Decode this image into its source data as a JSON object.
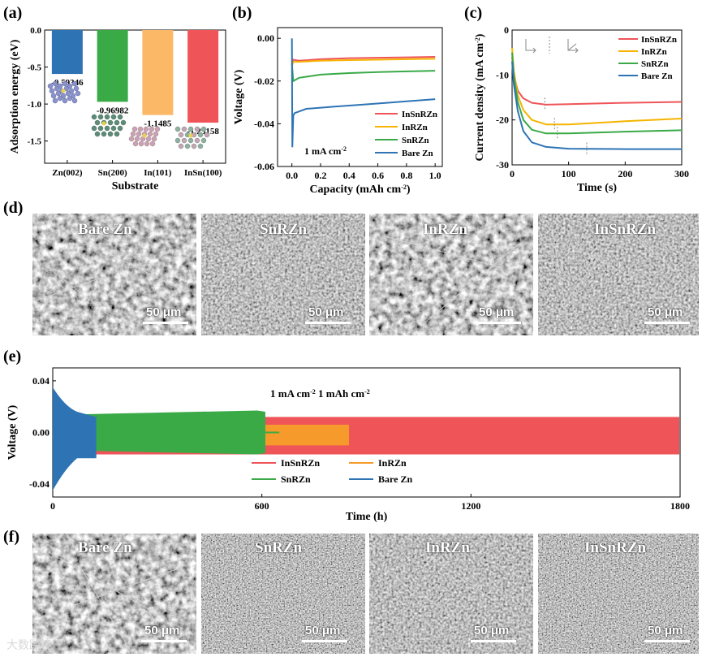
{
  "panels": {
    "a": {
      "letter": "(a)"
    },
    "b": {
      "letter": "(b)"
    },
    "c": {
      "letter": "(c)"
    },
    "d": {
      "letter": "(d)"
    },
    "e": {
      "letter": "(e)"
    },
    "f": {
      "letter": "(f)"
    }
  },
  "chart_data": [
    {
      "id": "a",
      "type": "bar",
      "xlabel": "Substrate",
      "ylabel": "Adsorption energy (eV)",
      "categories": [
        "Zn(002)",
        "Sn(200)",
        "In(101)",
        "InSn(100)"
      ],
      "values": [
        -0.59346,
        -0.96982,
        -1.1485,
        -1.25158
      ],
      "value_labels": [
        "-0.59346",
        "-0.96982",
        "-1.1485",
        "-1.25158"
      ],
      "colors": [
        "#2e74b5",
        "#3aaa47",
        "#fbb867",
        "#ef5459"
      ],
      "ylim": [
        -1.8,
        0.0
      ],
      "yticks": [
        "0.0",
        "-0.5",
        "-1.0",
        "-1.5"
      ]
    },
    {
      "id": "b",
      "type": "line",
      "xlabel": "Capacity (mAh cm⁻²)",
      "ylabel": "Voltage (V)",
      "annotation": "1 mA cm⁻²",
      "xlim": [
        -0.1,
        1.05
      ],
      "ylim": [
        -0.06,
        0.005
      ],
      "xticks": [
        "0.0",
        "0.2",
        "0.4",
        "0.6",
        "0.8",
        "1.0"
      ],
      "yticks": [
        "0.00",
        "-0.02",
        "-0.04",
        "-0.06"
      ],
      "series": [
        {
          "name": "InSnRZn",
          "color": "#ef5459",
          "x": [
            0.0,
            0.01,
            0.05,
            0.2,
            0.4,
            0.6,
            0.8,
            1.0
          ],
          "y": [
            -0.012,
            -0.01,
            -0.0105,
            -0.0098,
            -0.0093,
            -0.0091,
            -0.0089,
            -0.0087
          ]
        },
        {
          "name": "InRZn",
          "color": "#f6b400",
          "x": [
            0.0,
            0.01,
            0.05,
            0.2,
            0.4,
            0.6,
            0.8,
            1.0
          ],
          "y": [
            -0.013,
            -0.011,
            -0.011,
            -0.0105,
            -0.0102,
            -0.01,
            -0.0098,
            -0.0096
          ]
        },
        {
          "name": "SnRZn",
          "color": "#3aaa47",
          "x": [
            0.0,
            0.01,
            0.05,
            0.2,
            0.4,
            0.6,
            0.8,
            1.0
          ],
          "y": [
            -0.012,
            -0.02,
            -0.0185,
            -0.017,
            -0.0163,
            -0.0158,
            -0.0155,
            -0.0152
          ]
        },
        {
          "name": "Bare Zn",
          "color": "#2e74b5",
          "x": [
            0.0,
            0.003,
            0.01,
            0.02,
            0.1,
            0.3,
            0.5,
            0.7,
            1.0
          ],
          "y": [
            0.0,
            -0.051,
            -0.036,
            -0.035,
            -0.033,
            -0.032,
            -0.031,
            -0.03,
            -0.0285
          ]
        }
      ]
    },
    {
      "id": "c",
      "type": "line",
      "xlabel": "Time (s)",
      "ylabel": "Current density (mA cm⁻²)",
      "xlim": [
        0,
        300
      ],
      "ylim": [
        -30,
        0
      ],
      "xticks": [
        "0",
        "100",
        "200",
        "300"
      ],
      "yticks": [
        "0",
        "-10",
        "-20",
        "-30"
      ],
      "series": [
        {
          "name": "InSnRZn",
          "color": "#ef5459",
          "x": [
            0,
            3,
            10,
            20,
            35,
            60,
            100,
            200,
            300
          ],
          "y": [
            -6,
            -10,
            -13.5,
            -15.2,
            -16.2,
            -16.6,
            -16.5,
            -16.2,
            -16.0
          ]
        },
        {
          "name": "InRZn",
          "color": "#f6b400",
          "x": [
            0,
            3,
            10,
            20,
            35,
            60,
            100,
            200,
            300
          ],
          "y": [
            -4,
            -9,
            -14.5,
            -17.8,
            -20.0,
            -21.0,
            -21.0,
            -20.3,
            -19.7
          ]
        },
        {
          "name": "SnRZn",
          "color": "#3aaa47",
          "x": [
            0,
            3,
            10,
            20,
            35,
            60,
            100,
            200,
            300
          ],
          "y": [
            -5,
            -10,
            -16,
            -20,
            -22.2,
            -23.0,
            -23.0,
            -22.6,
            -22.3
          ]
        },
        {
          "name": "Bare Zn",
          "color": "#2e74b5",
          "x": [
            0,
            3,
            10,
            20,
            35,
            60,
            100,
            200,
            300
          ],
          "y": [
            -7,
            -12,
            -18,
            -22.5,
            -25,
            -26.0,
            -26.4,
            -26.5,
            -26.5
          ]
        }
      ]
    },
    {
      "id": "e",
      "type": "line",
      "xlabel": "Time (h)",
      "ylabel": "Voltage (V)",
      "annotation": "1 mA cm⁻²  1 mAh cm⁻²",
      "xlim": [
        0,
        1800
      ],
      "ylim": [
        -0.05,
        0.05
      ],
      "xticks": [
        "0",
        "600",
        "1200",
        "1800"
      ],
      "yticks": [
        "0.04",
        "0.00",
        "-0.04"
      ],
      "series": [
        {
          "name": "InSnRZn",
          "color": "#ef5459",
          "x_end": 1800,
          "amplitude": [
            0.012,
            -0.017
          ]
        },
        {
          "name": "InRZn",
          "color": "#f59a2b",
          "x_end": 850,
          "amplitude": [
            0.006,
            -0.01
          ]
        },
        {
          "name": "SnRZn",
          "color": "#3aaa47",
          "x_end": 610,
          "amplitude": [
            0.017,
            -0.017
          ]
        },
        {
          "name": "Bare Zn",
          "color": "#2e74b5",
          "x_end": 125,
          "amplitude": [
            0.035,
            -0.045
          ]
        }
      ]
    }
  ],
  "sem_top": [
    {
      "label": "Bare Zn",
      "scale": "50 μm"
    },
    {
      "label": "SnRZn",
      "scale": "50 μm"
    },
    {
      "label": "InRZn",
      "scale": "50 μm"
    },
    {
      "label": "InSnRZn",
      "scale": "50 μm"
    }
  ],
  "sem_bottom": [
    {
      "label": "Bare Zn",
      "scale": "50 μm"
    },
    {
      "label": "SnRZn",
      "scale": "50 μm"
    },
    {
      "label": "InRZn",
      "scale": "50 μm"
    },
    {
      "label": "InSnRZn",
      "scale": "50 μm"
    }
  ],
  "watermark": "大数跨境"
}
